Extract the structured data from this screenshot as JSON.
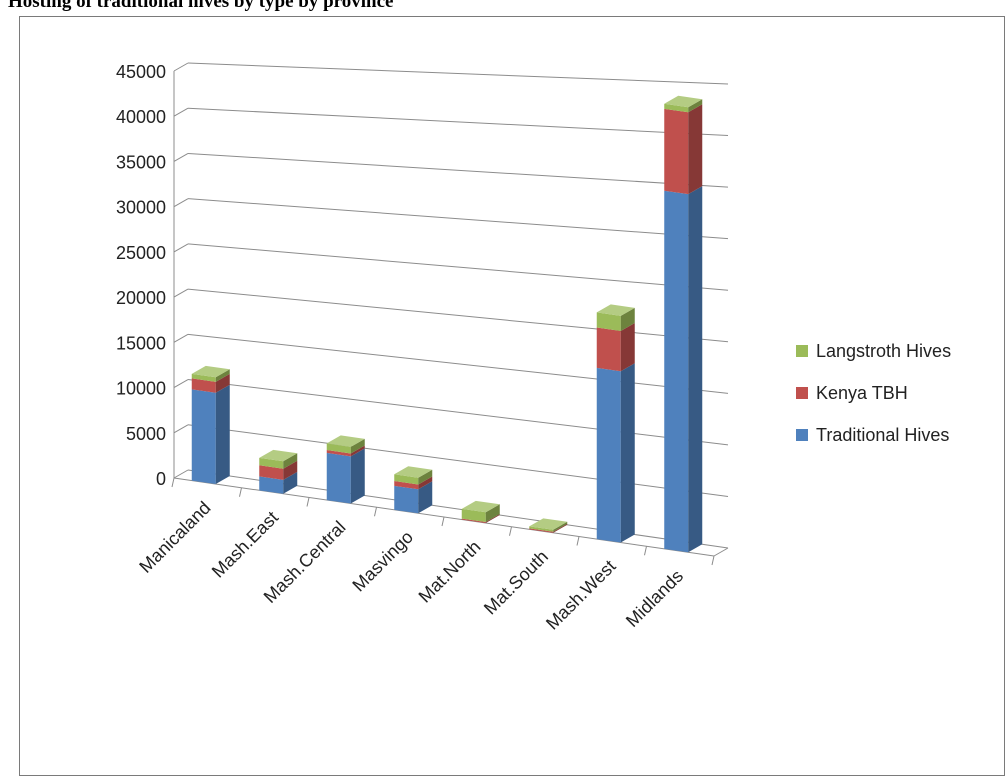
{
  "page": {
    "title": "Hosting of traditional hives by type by province"
  },
  "chart_data": {
    "type": "bar",
    "stacked": true,
    "three_d": true,
    "categories": [
      "Manicaland",
      "Mash.East",
      "Mash.Central",
      "Masvingo",
      "Mat.North",
      "Mat.South",
      "Mash.West",
      "Midlands"
    ],
    "series": [
      {
        "name": "Traditional  Hives",
        "color": "#4f81bd",
        "values": [
          10000,
          1500,
          5000,
          2500,
          0,
          0,
          17000,
          35000
        ]
      },
      {
        "name": "Kenya TBH",
        "color": "#c0504d",
        "values": [
          1200,
          1200,
          300,
          500,
          100,
          100,
          4000,
          8000
        ]
      },
      {
        "name": "Langstroth Hives",
        "color": "#9bbb59",
        "values": [
          500,
          800,
          700,
          700,
          1000,
          200,
          1500,
          500
        ]
      }
    ],
    "y_ticks": [
      0,
      5000,
      10000,
      15000,
      20000,
      25000,
      30000,
      35000,
      40000,
      45000
    ],
    "ylim": [
      0,
      45000
    ],
    "grid": true,
    "legend_position": "right"
  }
}
